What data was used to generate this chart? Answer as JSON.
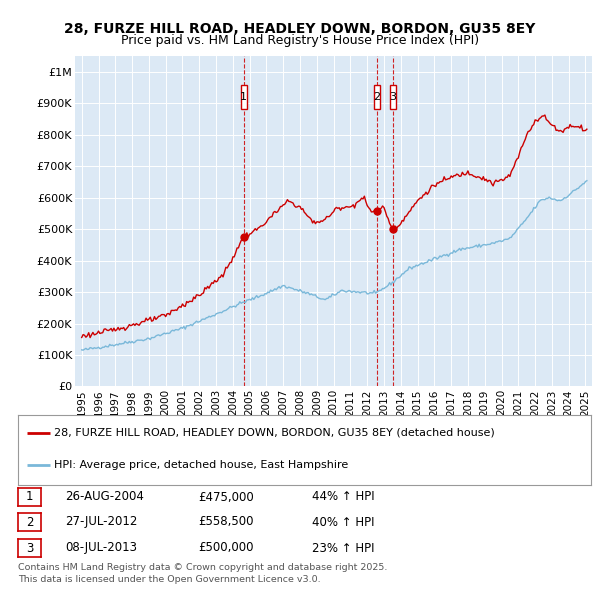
{
  "title": "28, FURZE HILL ROAD, HEADLEY DOWN, BORDON, GU35 8EY",
  "subtitle": "Price paid vs. HM Land Registry's House Price Index (HPI)",
  "plot_bg_color": "#dce9f5",
  "sale_prices": [
    475000,
    558500,
    500000
  ],
  "sale_labels": [
    "1",
    "2",
    "3"
  ],
  "sale_date_nums": [
    2004.647,
    2012.558,
    2013.519
  ],
  "legend_line1": "28, FURZE HILL ROAD, HEADLEY DOWN, BORDON, GU35 8EY (detached house)",
  "legend_line2": "HPI: Average price, detached house, East Hampshire",
  "table_rows": [
    [
      "1",
      "26-AUG-2004",
      "£475,000",
      "44% ↑ HPI"
    ],
    [
      "2",
      "27-JUL-2012",
      "£558,500",
      "40% ↑ HPI"
    ],
    [
      "3",
      "08-JUL-2013",
      "£500,000",
      "23% ↑ HPI"
    ]
  ],
  "footer": "Contains HM Land Registry data © Crown copyright and database right 2025.\nThis data is licensed under the Open Government Licence v3.0.",
  "hpi_color": "#7ab8d9",
  "price_color": "#cc0000",
  "vline_color": "#cc0000",
  "ylim": [
    0,
    1050000
  ],
  "ytick_vals": [
    0,
    100000,
    200000,
    300000,
    400000,
    500000,
    600000,
    700000,
    800000,
    900000,
    1000000
  ],
  "ytick_labels": [
    "£0",
    "£100K",
    "£200K",
    "£300K",
    "£400K",
    "£500K",
    "£600K",
    "£700K",
    "£800K",
    "£900K",
    "£1M"
  ],
  "xlim": [
    1994.6,
    2025.4
  ],
  "xtick_years": [
    1995,
    1996,
    1997,
    1998,
    1999,
    2000,
    2001,
    2002,
    2003,
    2004,
    2005,
    2006,
    2007,
    2008,
    2009,
    2010,
    2011,
    2012,
    2013,
    2014,
    2015,
    2016,
    2017,
    2018,
    2019,
    2020,
    2021,
    2022,
    2023,
    2024,
    2025
  ]
}
